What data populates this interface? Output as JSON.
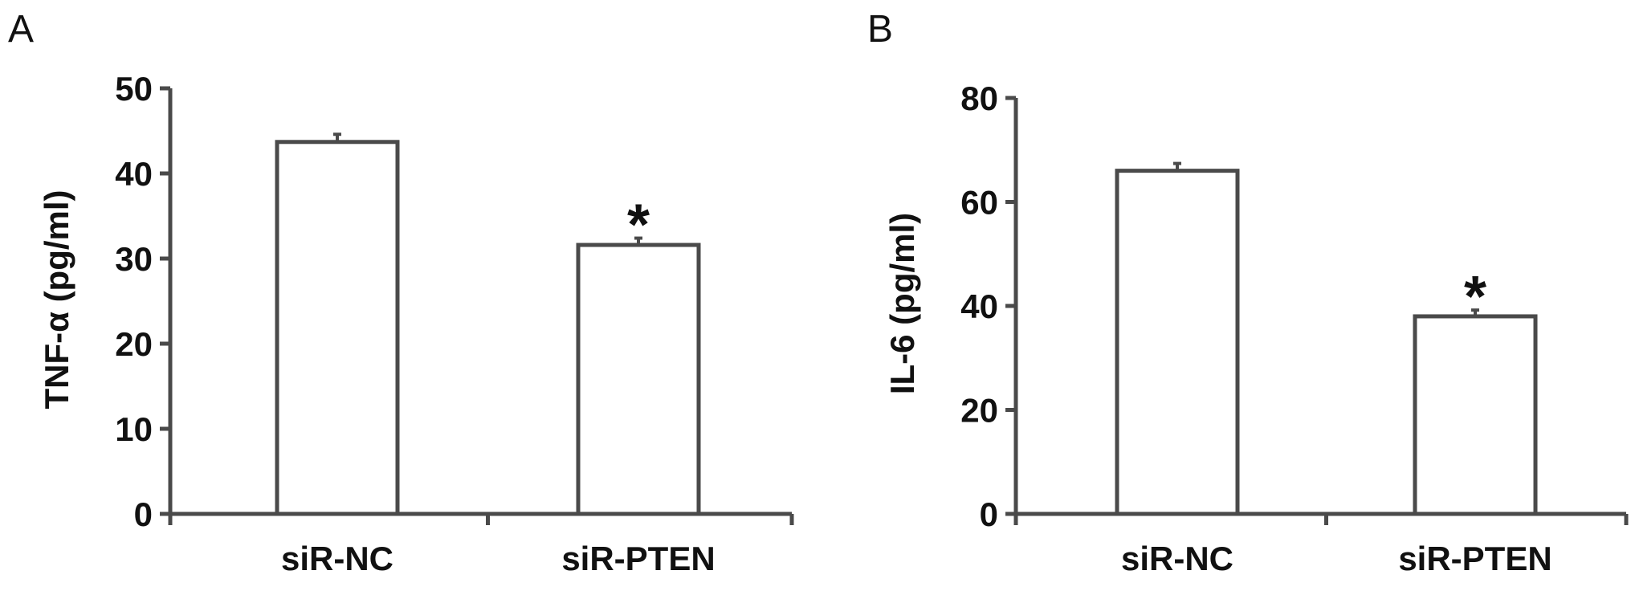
{
  "panels": [
    {
      "label": "A"
    },
    {
      "label": "B"
    }
  ],
  "chart_data": [
    {
      "type": "bar",
      "panel": "A",
      "ylabel": "TNF-α (pg/ml)",
      "xlabel": "",
      "categories": [
        "siR-NC",
        "siR-PTEN"
      ],
      "values": [
        43.7,
        31.6
      ],
      "error": [
        0.9,
        0.8
      ],
      "significance": [
        "",
        "*"
      ],
      "ylim": [
        0,
        50
      ],
      "yticks": [
        "0",
        "10",
        "20",
        "30",
        "40",
        "50"
      ],
      "bar_fill": "#ffffff",
      "line_color": "#4a4a4a",
      "grid": false,
      "legend": "none"
    },
    {
      "type": "bar",
      "panel": "B",
      "ylabel": "IL-6 (pg/ml)",
      "xlabel": "",
      "categories": [
        "siR-NC",
        "siR-PTEN"
      ],
      "values": [
        66.0,
        38.0
      ],
      "error": [
        1.4,
        1.2
      ],
      "significance": [
        "",
        "*"
      ],
      "ylim": [
        0,
        80
      ],
      "yticks": [
        "0",
        "20",
        "40",
        "60",
        "80"
      ],
      "bar_fill": "#ffffff",
      "line_color": "#4a4a4a",
      "grid": false,
      "legend": "none"
    }
  ]
}
